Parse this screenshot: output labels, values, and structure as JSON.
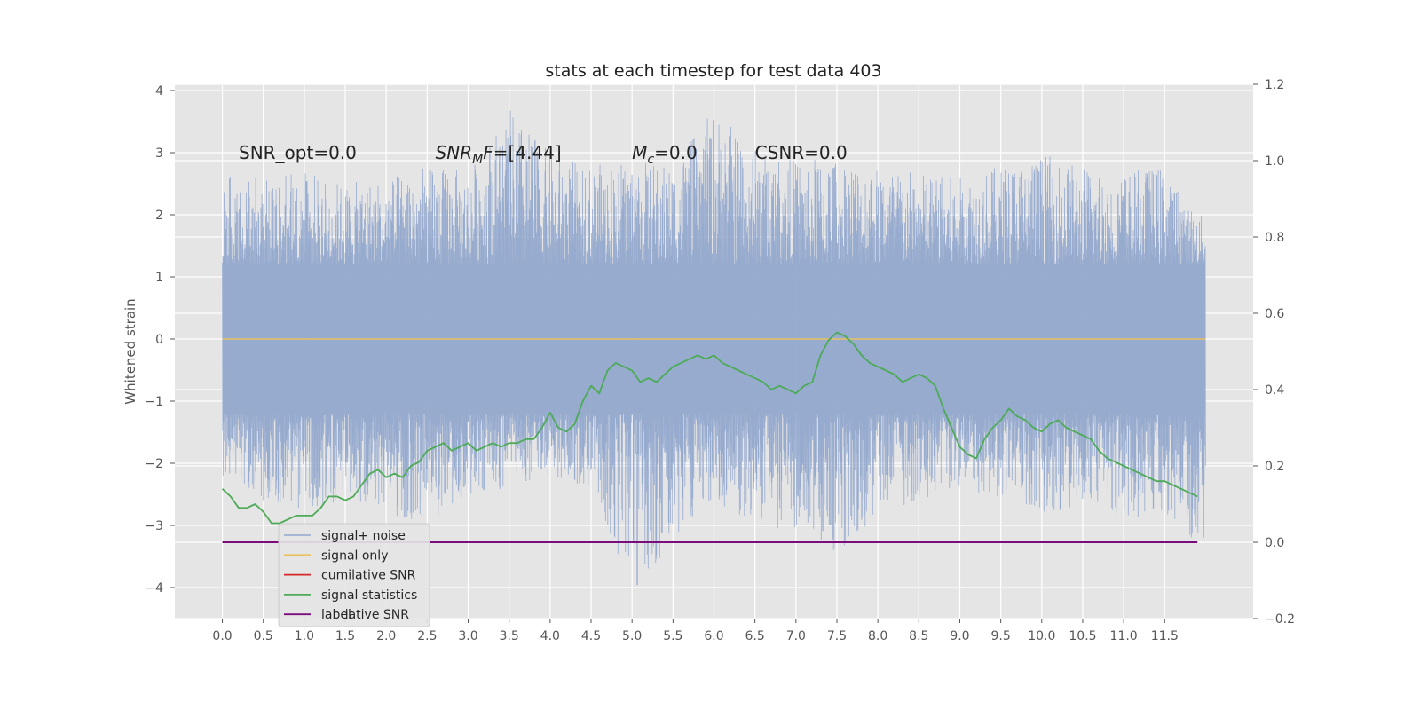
{
  "chart_data": {
    "type": "line",
    "title": "stats at each timestep for test data 403",
    "ylabel": "Whitened strain",
    "xlim": [
      -0.58,
      12.58
    ],
    "ylim_left": [
      -4.5,
      4.1
    ],
    "ylim_right": [
      -0.2,
      1.2
    ],
    "xticks": [
      "0.0",
      "0.5",
      "1.0",
      "1.5",
      "2.0",
      "2.5",
      "3.0",
      "3.5",
      "4.0",
      "4.5",
      "5.0",
      "5.5",
      "6.0",
      "6.5",
      "7.0",
      "7.5",
      "8.0",
      "8.5",
      "9.0",
      "9.5",
      "10.0",
      "10.5",
      "11.0",
      "11.5"
    ],
    "yticks_left": [
      "4",
      "3",
      "2",
      "1",
      "0",
      "−1",
      "−2",
      "−3",
      "−4"
    ],
    "yticks_right": [
      "1.2",
      "1.0",
      "0.8",
      "0.6",
      "0.4",
      "0.2",
      "0.0",
      "−0.2"
    ],
    "grid": true,
    "legend_position": "lower-left",
    "annotations": [
      {
        "text": "SNR_opt=0.0",
        "x": 0.2,
        "y": 2.9
      },
      {
        "text": "SNR_MF=[4.44]",
        "x": 2.6,
        "y": 2.9
      },
      {
        "text": "M_c=0.0",
        "x": 5.0,
        "y": 2.9
      },
      {
        "text": "CSNR=0.0",
        "x": 6.5,
        "y": 2.9
      }
    ],
    "noise_envelope": {
      "x": [
        0.0,
        0.5,
        1.0,
        1.5,
        2.0,
        2.5,
        3.0,
        3.5,
        4.0,
        4.5,
        5.0,
        5.5,
        6.0,
        6.5,
        7.0,
        7.5,
        8.0,
        8.5,
        9.0,
        9.5,
        10.0,
        10.5,
        11.0,
        11.5,
        11.9
      ],
      "upper": [
        2.7,
        2.6,
        2.7,
        2.5,
        2.6,
        2.8,
        2.7,
        3.7,
        3.0,
        2.8,
        2.9,
        2.8,
        3.7,
        3.1,
        2.9,
        3.0,
        2.8,
        2.7,
        2.6,
        2.8,
        3.0,
        2.8,
        2.7,
        2.8,
        2.0
      ],
      "lower": [
        -2.2,
        -2.6,
        -2.8,
        -2.6,
        -2.8,
        -3.0,
        -2.5,
        -2.4,
        -2.2,
        -2.4,
        -4.1,
        -3.3,
        -2.6,
        -3.0,
        -3.1,
        -3.5,
        -2.8,
        -2.6,
        -2.4,
        -2.6,
        -2.8,
        -2.7,
        -2.9,
        -2.8,
        -3.4
      ]
    },
    "series": [
      {
        "name": "signal+ noise",
        "color": "#92a8cd",
        "axis": "left",
        "style": "noise"
      },
      {
        "name": "signal only",
        "color": "#e8c15e",
        "axis": "left",
        "x": [
          0.0,
          12.0
        ],
        "values": [
          0.0,
          0.0
        ]
      },
      {
        "name": "cumilative SNR",
        "color": "#d62728",
        "axis": "right",
        "x": [],
        "values": []
      },
      {
        "name": "signal statistics",
        "color": "#4daa57",
        "axis": "right",
        "x": [
          0.0,
          0.1,
          0.2,
          0.3,
          0.4,
          0.5,
          0.6,
          0.7,
          0.8,
          0.9,
          1.0,
          1.1,
          1.2,
          1.3,
          1.4,
          1.5,
          1.6,
          1.7,
          1.8,
          1.9,
          2.0,
          2.1,
          2.2,
          2.3,
          2.4,
          2.5,
          2.6,
          2.7,
          2.8,
          2.9,
          3.0,
          3.1,
          3.2,
          3.3,
          3.4,
          3.5,
          3.6,
          3.7,
          3.8,
          3.9,
          4.0,
          4.1,
          4.2,
          4.3,
          4.4,
          4.5,
          4.6,
          4.7,
          4.8,
          4.9,
          5.0,
          5.1,
          5.2,
          5.3,
          5.4,
          5.5,
          5.6,
          5.7,
          5.8,
          5.9,
          6.0,
          6.1,
          6.2,
          6.3,
          6.4,
          6.5,
          6.6,
          6.7,
          6.8,
          6.9,
          7.0,
          7.1,
          7.2,
          7.3,
          7.4,
          7.5,
          7.6,
          7.7,
          7.8,
          7.9,
          8.0,
          8.1,
          8.2,
          8.3,
          8.4,
          8.5,
          8.6,
          8.7,
          8.8,
          8.9,
          9.0,
          9.1,
          9.2,
          9.3,
          9.4,
          9.5,
          9.6,
          9.7,
          9.8,
          9.9,
          10.0,
          10.1,
          10.2,
          10.3,
          10.4,
          10.5,
          10.6,
          10.7,
          10.8,
          10.9,
          11.0,
          11.1,
          11.2,
          11.3,
          11.4,
          11.5,
          11.6,
          11.7,
          11.8,
          11.9
        ],
        "values": [
          0.14,
          0.12,
          0.09,
          0.09,
          0.1,
          0.08,
          0.05,
          0.05,
          0.06,
          0.07,
          0.07,
          0.07,
          0.09,
          0.12,
          0.12,
          0.11,
          0.12,
          0.15,
          0.18,
          0.19,
          0.17,
          0.18,
          0.17,
          0.2,
          0.21,
          0.24,
          0.25,
          0.26,
          0.24,
          0.25,
          0.26,
          0.24,
          0.25,
          0.26,
          0.25,
          0.26,
          0.26,
          0.27,
          0.27,
          0.3,
          0.34,
          0.3,
          0.29,
          0.31,
          0.37,
          0.41,
          0.39,
          0.45,
          0.47,
          0.46,
          0.45,
          0.42,
          0.43,
          0.42,
          0.44,
          0.46,
          0.47,
          0.48,
          0.49,
          0.48,
          0.49,
          0.47,
          0.46,
          0.45,
          0.44,
          0.43,
          0.42,
          0.4,
          0.41,
          0.4,
          0.39,
          0.41,
          0.42,
          0.49,
          0.53,
          0.55,
          0.54,
          0.52,
          0.49,
          0.47,
          0.46,
          0.45,
          0.44,
          0.42,
          0.43,
          0.44,
          0.43,
          0.41,
          0.35,
          0.3,
          0.25,
          0.23,
          0.22,
          0.27,
          0.3,
          0.32,
          0.35,
          0.33,
          0.32,
          0.3,
          0.29,
          0.31,
          0.32,
          0.3,
          0.29,
          0.28,
          0.27,
          0.24,
          0.22,
          0.21,
          0.2,
          0.19,
          0.18,
          0.17,
          0.16,
          0.16,
          0.15,
          0.14,
          0.13,
          0.12
        ]
      },
      {
        "name": "label",
        "color": "#7b0c7b",
        "axis": "right",
        "x": [
          0.0,
          11.9
        ],
        "values": [
          0.0,
          0.0
        ]
      }
    ],
    "legend": [
      "signal+ noise",
      "signal only",
      "cumilative SNR",
      "signal statistics",
      "label"
    ],
    "ghost_legend_text": "lative SNR"
  }
}
